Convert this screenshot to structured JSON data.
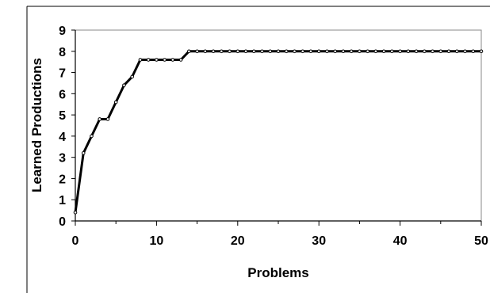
{
  "chart_data": {
    "type": "line",
    "xlabel": "Problems",
    "ylabel": "Learned Productions",
    "xlim": [
      0,
      50
    ],
    "ylim": [
      0,
      9
    ],
    "x_ticks": [
      0,
      10,
      20,
      30,
      40,
      50
    ],
    "x_tick_labels": [
      "0",
      "10",
      "20",
      "30",
      "40",
      "50"
    ],
    "y_ticks": [
      0,
      1,
      2,
      3,
      4,
      5,
      6,
      7,
      8,
      9
    ],
    "y_tick_labels": [
      "0",
      "1",
      "2",
      "3",
      "4",
      "5",
      "6",
      "7",
      "8",
      "9"
    ],
    "grid": false,
    "legend": "none",
    "line_color": "#000000",
    "marker": "small-dot",
    "series": [
      {
        "x": [
          0,
          1,
          2,
          3,
          4,
          5,
          6,
          7,
          8,
          9,
          10,
          11,
          12,
          13,
          14,
          15,
          16,
          17,
          18,
          19,
          20,
          21,
          22,
          23,
          24,
          25,
          26,
          27,
          28,
          29,
          30,
          31,
          32,
          33,
          34,
          35,
          36,
          37,
          38,
          39,
          40,
          41,
          42,
          43,
          44,
          45,
          46,
          47,
          48,
          49,
          50
        ],
        "values": [
          0.4,
          3.2,
          4.0,
          4.8,
          4.8,
          5.6,
          6.4,
          6.8,
          7.6,
          7.6,
          7.6,
          7.6,
          7.6,
          7.6,
          8,
          8,
          8,
          8,
          8,
          8,
          8,
          8,
          8,
          8,
          8,
          8,
          8,
          8,
          8,
          8,
          8,
          8,
          8,
          8,
          8,
          8,
          8,
          8,
          8,
          8,
          8,
          8,
          8,
          8,
          8,
          8,
          8,
          8,
          8,
          8,
          8
        ]
      }
    ]
  }
}
